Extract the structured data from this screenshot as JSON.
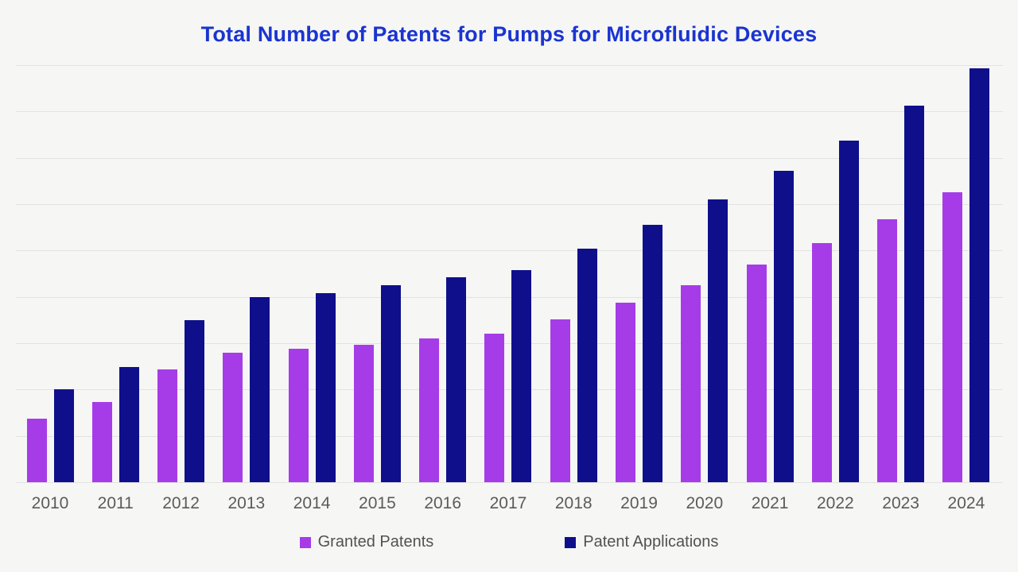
{
  "title": "Total Number of Patents for Pumps for Microfluidic Devices",
  "colors": {
    "background": "#f6f6f4",
    "title": "#1a34d1",
    "granted": "#a63ce8",
    "applications": "#0f0f8c",
    "gridline": "#e2e2e0",
    "axis_label": "#5b5b5b",
    "legend_text": "#525252"
  },
  "legend": {
    "items": [
      {
        "label": "Granted Patents",
        "color_key": "granted"
      },
      {
        "label": "Patent Applications",
        "color_key": "applications"
      }
    ]
  },
  "chart_data": {
    "type": "bar",
    "title": "Total Number of Patents for Pumps for Microfluidic Devices",
    "categories": [
      "2010",
      "2011",
      "2012",
      "2013",
      "2014",
      "2015",
      "2016",
      "2017",
      "2018",
      "2019",
      "2020",
      "2021",
      "2022",
      "2023",
      "2024"
    ],
    "series": [
      {
        "name": "Granted Patents",
        "color_key": "granted",
        "values": [
          69,
          87,
          122,
          140,
          144,
          148,
          155,
          160,
          176,
          194,
          213,
          235,
          258,
          284,
          313
        ]
      },
      {
        "name": "Patent Applications",
        "color_key": "applications",
        "values": [
          100,
          124,
          175,
          200,
          204,
          213,
          221,
          229,
          252,
          278,
          305,
          336,
          369,
          406,
          447
        ]
      }
    ],
    "xlabel": "",
    "ylabel": "",
    "ylim": [
      0,
      450
    ],
    "gridline_step": 50,
    "y_tick_labels_visible": false,
    "grid": true,
    "legend_position": "bottom"
  }
}
